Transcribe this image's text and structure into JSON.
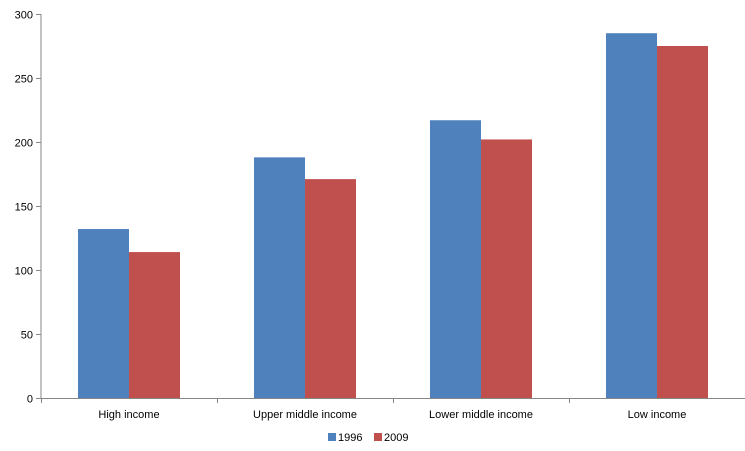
{
  "chart_data": {
    "type": "bar",
    "title": "",
    "xlabel": "",
    "ylabel": "",
    "categories": [
      "High income",
      "Upper middle income",
      "Lower middle income",
      "Low income"
    ],
    "series": [
      {
        "name": "1996",
        "color": "#4f81bd",
        "values": [
          132,
          188,
          217,
          285
        ]
      },
      {
        "name": "2009",
        "color": "#c0504d",
        "values": [
          114,
          171,
          202,
          275
        ]
      }
    ],
    "ylim": [
      0,
      300
    ],
    "yticks": [
      0,
      50,
      100,
      150,
      200,
      250,
      300
    ],
    "grid": false,
    "legend_position": "bottom"
  }
}
